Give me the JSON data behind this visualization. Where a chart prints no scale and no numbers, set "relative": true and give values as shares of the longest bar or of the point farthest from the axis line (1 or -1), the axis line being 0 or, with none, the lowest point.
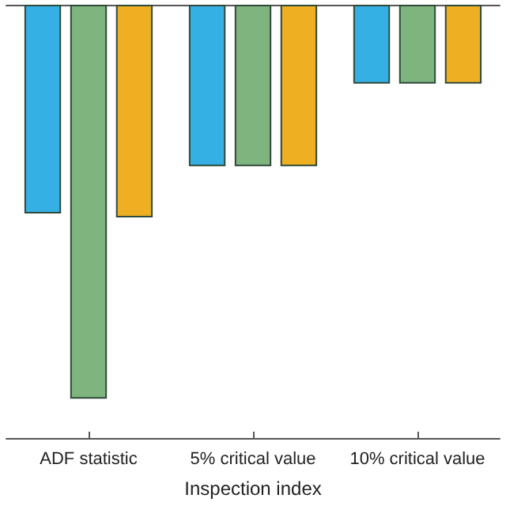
{
  "chart_data": {
    "type": "bar",
    "relative": true,
    "xlabel": "Inspection index",
    "categories": [
      "ADF statistic",
      "5% critical value",
      "10% critical value"
    ],
    "series": [
      {
        "color": "#35b0e5",
        "values": [
          -0.53,
          -0.41,
          -0.2
        ]
      },
      {
        "color": "#7eb57e",
        "values": [
          -1,
          -0.41,
          -0.2
        ]
      },
      {
        "color": "#eeb022",
        "values": [
          -0.54,
          -0.41,
          -0.2
        ]
      }
    ]
  }
}
